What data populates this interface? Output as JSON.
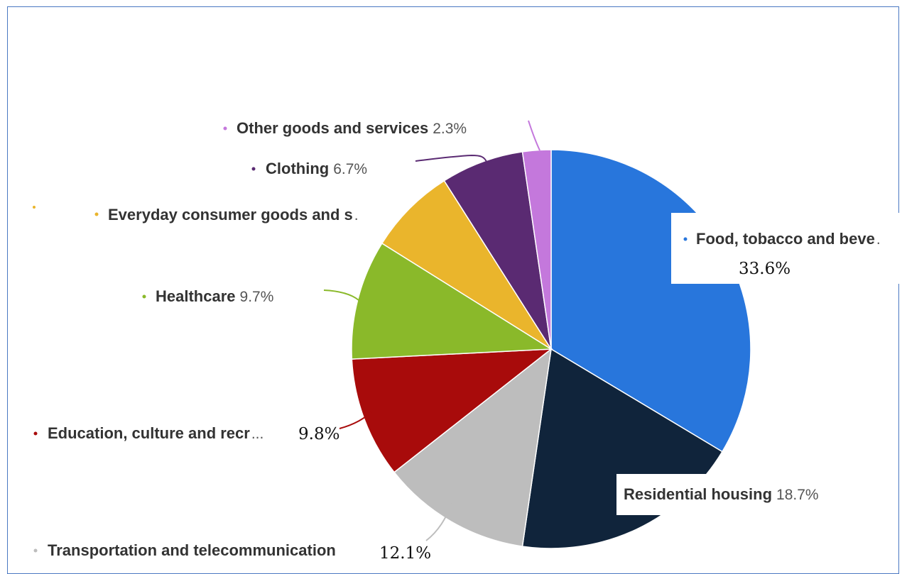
{
  "chart_data": {
    "type": "pie",
    "slices": [
      {
        "label": "Food, tobacco and beve",
        "value": 33.6,
        "value_text": "33.6%",
        "color": "#2876dc"
      },
      {
        "label": "Residential housing",
        "value": 18.7,
        "value_text": "18.7%",
        "color": "#10243b"
      },
      {
        "label": "Transportation and telecommunication",
        "value": 12.1,
        "value_text": "12.1%",
        "color": "#bdbdbd"
      },
      {
        "label": "Education, culture and recr",
        "value": 9.8,
        "value_text": "9.8%",
        "color": "#a80b0b"
      },
      {
        "label": "Healthcare",
        "value": 9.7,
        "value_text": "9.7%",
        "color": "#8ab92a"
      },
      {
        "label": "Everyday consumer goods and s",
        "value": 7.1,
        "value_text": "",
        "color": "#eab52c"
      },
      {
        "label": "Clothing",
        "value": 6.7,
        "value_text": "6.7%",
        "color": "#5a2a72"
      },
      {
        "label": "Other goods and services",
        "value": 2.3,
        "value_text": "2.3%",
        "color": "#c478dc"
      }
    ],
    "legend": "none",
    "start_angle_deg": 0,
    "direction": "clockwise"
  },
  "truncation_marks": {
    "food": ".",
    "everyday": ".",
    "education": "..."
  }
}
